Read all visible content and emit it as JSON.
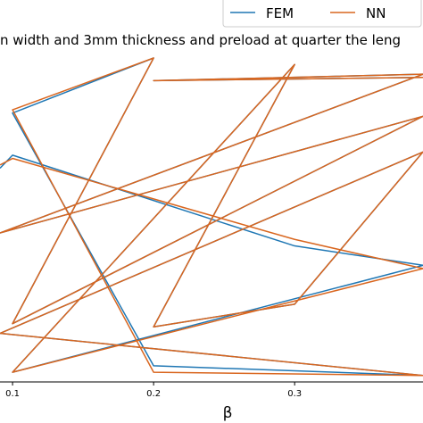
{
  "chart_data": {
    "type": "line",
    "title": "n width and 3mm thickness and preload at quarter the leng",
    "x_label": "β",
    "xlim": [
      0.0911,
      0.391
    ],
    "xticks": [
      0.1,
      0.2,
      0.3
    ],
    "ylim": [
      0,
      1
    ],
    "legend": "upper right",
    "series": [
      {
        "name": "FEM",
        "color": "#1f77b4",
        "x": [
          0.0911,
          0.1,
          0.3,
          0.391,
          0.1,
          0.3,
          0.2,
          0.3,
          0.391,
          0.0911,
          0.391,
          0.2,
          0.1,
          0.2,
          0.1,
          0.391,
          0.0911,
          0.391,
          0.2,
          0.391
        ],
        "values": [
          0.66,
          0.7,
          0.42,
          0.36,
          0.03,
          0.98,
          0.17,
          0.24,
          0.71,
          0.15,
          0.02,
          0.05,
          0.83,
          1.0,
          0.18,
          0.82,
          0.46,
          0.95,
          0.93,
          0.94
        ]
      },
      {
        "name": "NN",
        "color": "#d9661f",
        "x": [
          0.0911,
          0.1,
          0.3,
          0.391,
          0.1,
          0.3,
          0.2,
          0.3,
          0.391,
          0.0911,
          0.391,
          0.2,
          0.1,
          0.2,
          0.1,
          0.391,
          0.0911,
          0.391,
          0.2,
          0.391
        ],
        "values": [
          0.67,
          0.69,
          0.44,
          0.35,
          0.03,
          0.98,
          0.17,
          0.24,
          0.71,
          0.15,
          0.02,
          0.03,
          0.84,
          1.0,
          0.18,
          0.82,
          0.46,
          0.95,
          0.93,
          0.94
        ]
      }
    ]
  }
}
